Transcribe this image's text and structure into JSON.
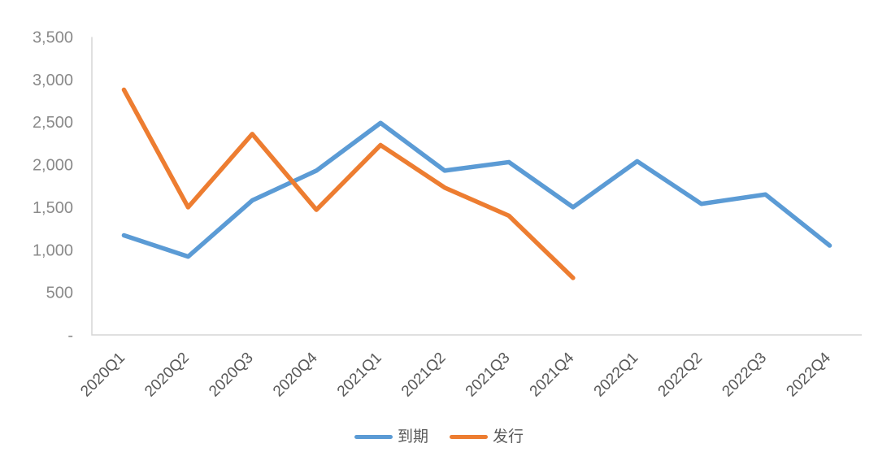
{
  "chart_data": {
    "type": "line",
    "categories": [
      "2020Q1",
      "2020Q2",
      "2020Q3",
      "2020Q4",
      "2021Q1",
      "2021Q2",
      "2021Q3",
      "2021Q4",
      "2022Q1",
      "2022Q2",
      "2022Q3",
      "2022Q4"
    ],
    "series": [
      {
        "name": "到期",
        "color": "#5B9BD5",
        "values": [
          1170,
          920,
          1580,
          1930,
          2490,
          1930,
          2030,
          1500,
          2040,
          1540,
          1650,
          1050
        ]
      },
      {
        "name": "发行",
        "color": "#ED7D31",
        "values": [
          2880,
          1500,
          2360,
          1470,
          2230,
          1730,
          1400,
          670,
          null,
          null,
          null,
          null
        ]
      }
    ],
    "title": "",
    "xlabel": "",
    "ylabel": "",
    "y_axis": {
      "min": 0,
      "max": 3500,
      "ticks": [
        {
          "value": 0,
          "label": "-"
        },
        {
          "value": 500,
          "label": "500"
        },
        {
          "value": 1000,
          "label": "1,000"
        },
        {
          "value": 1500,
          "label": "1,500"
        },
        {
          "value": 2000,
          "label": "2,000"
        },
        {
          "value": 2500,
          "label": "2,500"
        },
        {
          "value": 3000,
          "label": "3,000"
        },
        {
          "value": 3500,
          "label": "3,500"
        }
      ]
    },
    "grid": "off",
    "legend_position": "bottom",
    "colors": {
      "axis_line": "#D6D6D6",
      "y_tick_label": "#8A8A8A",
      "x_tick_label": "#595959",
      "legend_text": "#595959"
    }
  }
}
